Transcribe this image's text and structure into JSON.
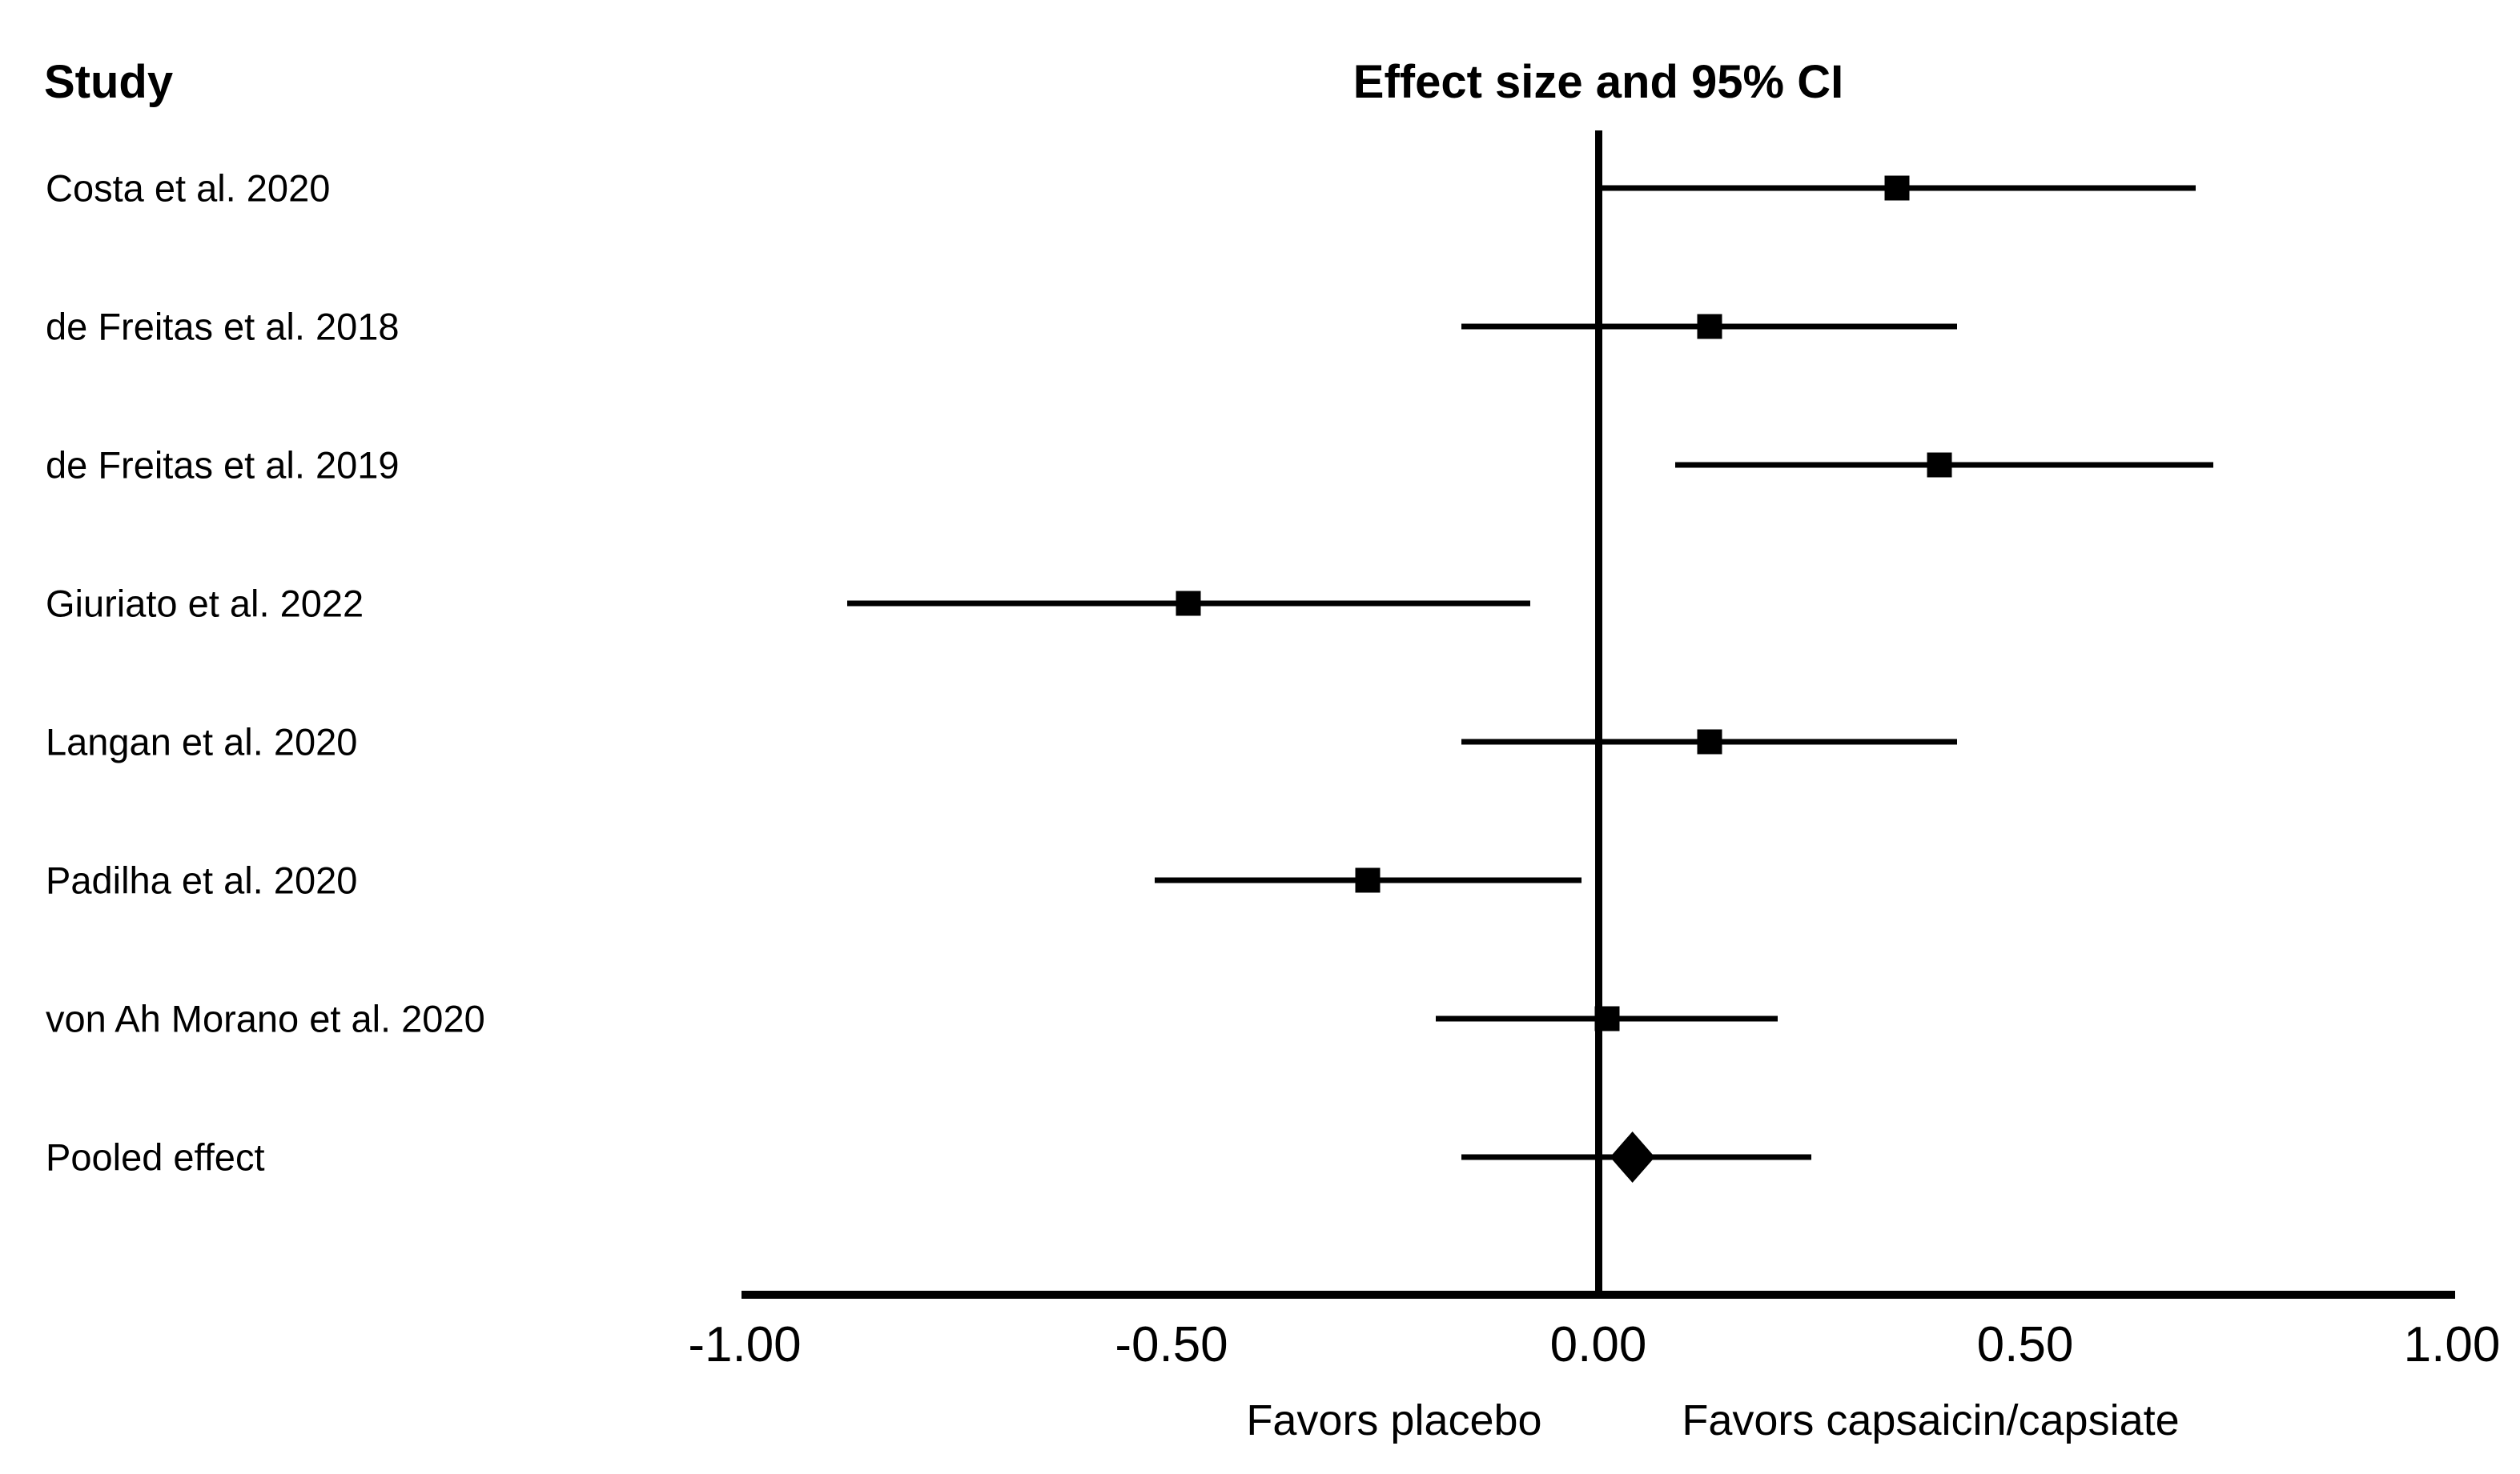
{
  "page": {
    "background": "#ffffff"
  },
  "header": {
    "study_column_title": "Study",
    "effect_column_title": "Effect size and 95% CI"
  },
  "chart_data": {
    "type": "scatter",
    "subtype": "forest-plot",
    "title": "Effect size and 95% CI",
    "row_header": "Study",
    "xlabel_left": "Favors placebo",
    "xlabel_right": "Favors capsaicin/capsiate",
    "xlim": [
      -1.0,
      1.0
    ],
    "x_ticks": [
      "-1.00",
      "-0.50",
      "0.00",
      "0.50",
      "1.00"
    ],
    "x_tick_values": [
      -1.0,
      -0.5,
      0.0,
      0.5,
      1.0
    ],
    "zero_reference_line": 0.0,
    "grid": false,
    "studies": [
      {
        "label": "Costa et al. 2020",
        "effect": 0.35,
        "ci_low": 0.0,
        "ci_high": 0.7,
        "marker": "square"
      },
      {
        "label": "de Freitas et al. 2018",
        "effect": 0.13,
        "ci_low": -0.16,
        "ci_high": 0.42,
        "marker": "square"
      },
      {
        "label": "de Freitas et al. 2019",
        "effect": 0.4,
        "ci_low": 0.09,
        "ci_high": 0.72,
        "marker": "square"
      },
      {
        "label": "Giuriato et al. 2022",
        "effect": -0.48,
        "ci_low": -0.88,
        "ci_high": -0.08,
        "marker": "square"
      },
      {
        "label": "Langan et al. 2020",
        "effect": 0.13,
        "ci_low": -0.16,
        "ci_high": 0.42,
        "marker": "square"
      },
      {
        "label": "Padilha et al. 2020",
        "effect": -0.27,
        "ci_low": -0.52,
        "ci_high": -0.02,
        "marker": "square"
      },
      {
        "label": "von Ah Morano et al. 2020",
        "effect": 0.01,
        "ci_low": -0.19,
        "ci_high": 0.21,
        "marker": "square"
      },
      {
        "label": "Pooled effect",
        "effect": 0.04,
        "ci_low": -0.16,
        "ci_high": 0.25,
        "marker": "diamond"
      }
    ],
    "colors": {
      "marker": "#000000",
      "line": "#000000",
      "text": "#000000",
      "background": "#ffffff"
    }
  }
}
